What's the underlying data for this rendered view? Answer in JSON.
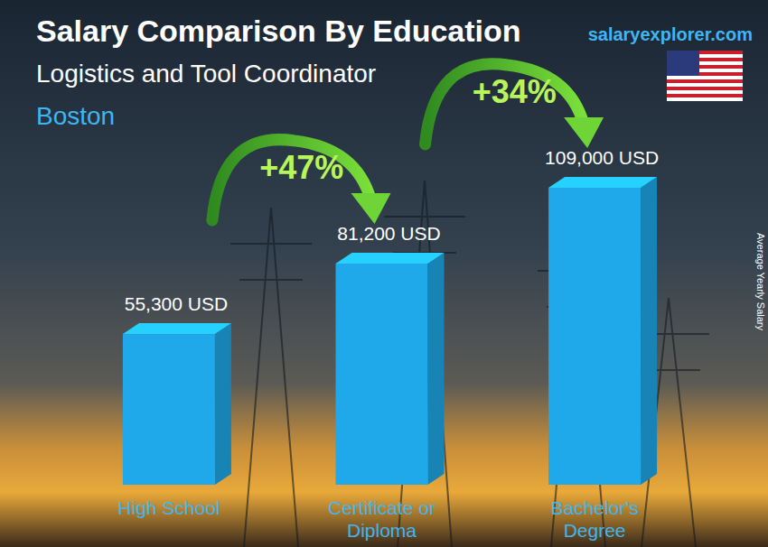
{
  "chart_data": {
    "type": "bar",
    "title": "Salary Comparison By Education",
    "subtitle": "Logistics and Tool Coordinator",
    "location": "Boston",
    "source": "salaryexplorer.com",
    "y_label": "Average Yearly Salary",
    "categories": [
      "High School",
      "Certificate or Diploma",
      "Bachelor's Degree"
    ],
    "values": [
      55300,
      81200,
      109000
    ],
    "value_labels": [
      "55,300 USD",
      "81,200 USD",
      "109,000 USD"
    ],
    "annotations": [
      "+47%",
      "+34%"
    ],
    "color": "#1fa9ea",
    "data_labels": true,
    "tick_labels": "x",
    "grid": false
  }
}
